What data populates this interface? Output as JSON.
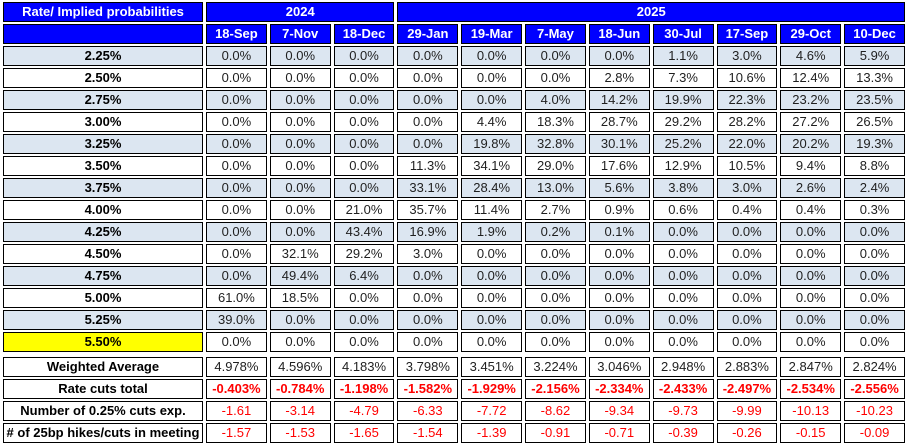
{
  "chart_data": {
    "type": "table",
    "title": "Rate/ Implied probabilities",
    "corner_header": "Rate/ Implied probabilities",
    "year_groups": [
      {
        "label": "2024",
        "span": 3
      },
      {
        "label": "2025",
        "span": 8
      }
    ],
    "columns": [
      "18-Sep",
      "7-Nov",
      "18-Dec",
      "29-Jan",
      "19-Mar",
      "7-May",
      "18-Jun",
      "30-Jul",
      "17-Sep",
      "29-Oct",
      "10-Dec"
    ],
    "highlight_row": "5.50%",
    "rows": [
      {
        "label": "2.25%",
        "values": [
          "0.0%",
          "0.0%",
          "0.0%",
          "0.0%",
          "0.0%",
          "0.0%",
          "0.0%",
          "1.1%",
          "3.0%",
          "4.6%",
          "5.9%"
        ]
      },
      {
        "label": "2.50%",
        "values": [
          "0.0%",
          "0.0%",
          "0.0%",
          "0.0%",
          "0.0%",
          "0.0%",
          "2.8%",
          "7.3%",
          "10.6%",
          "12.4%",
          "13.3%"
        ]
      },
      {
        "label": "2.75%",
        "values": [
          "0.0%",
          "0.0%",
          "0.0%",
          "0.0%",
          "0.0%",
          "4.0%",
          "14.2%",
          "19.9%",
          "22.3%",
          "23.2%",
          "23.5%"
        ]
      },
      {
        "label": "3.00%",
        "values": [
          "0.0%",
          "0.0%",
          "0.0%",
          "0.0%",
          "4.4%",
          "18.3%",
          "28.7%",
          "29.2%",
          "28.2%",
          "27.2%",
          "26.5%"
        ]
      },
      {
        "label": "3.25%",
        "values": [
          "0.0%",
          "0.0%",
          "0.0%",
          "0.0%",
          "19.8%",
          "32.8%",
          "30.1%",
          "25.2%",
          "22.0%",
          "20.2%",
          "19.3%"
        ]
      },
      {
        "label": "3.50%",
        "values": [
          "0.0%",
          "0.0%",
          "0.0%",
          "11.3%",
          "34.1%",
          "29.0%",
          "17.6%",
          "12.9%",
          "10.5%",
          "9.4%",
          "8.8%"
        ]
      },
      {
        "label": "3.75%",
        "values": [
          "0.0%",
          "0.0%",
          "0.0%",
          "33.1%",
          "28.4%",
          "13.0%",
          "5.6%",
          "3.8%",
          "3.0%",
          "2.6%",
          "2.4%"
        ]
      },
      {
        "label": "4.00%",
        "values": [
          "0.0%",
          "0.0%",
          "21.0%",
          "35.7%",
          "11.4%",
          "2.7%",
          "0.9%",
          "0.6%",
          "0.4%",
          "0.4%",
          "0.3%"
        ]
      },
      {
        "label": "4.25%",
        "values": [
          "0.0%",
          "0.0%",
          "43.4%",
          "16.9%",
          "1.9%",
          "0.2%",
          "0.1%",
          "0.0%",
          "0.0%",
          "0.0%",
          "0.0%"
        ]
      },
      {
        "label": "4.50%",
        "values": [
          "0.0%",
          "32.1%",
          "29.2%",
          "3.0%",
          "0.0%",
          "0.0%",
          "0.0%",
          "0.0%",
          "0.0%",
          "0.0%",
          "0.0%"
        ]
      },
      {
        "label": "4.75%",
        "values": [
          "0.0%",
          "49.4%",
          "6.4%",
          "0.0%",
          "0.0%",
          "0.0%",
          "0.0%",
          "0.0%",
          "0.0%",
          "0.0%",
          "0.0%"
        ]
      },
      {
        "label": "5.00%",
        "values": [
          "61.0%",
          "18.5%",
          "0.0%",
          "0.0%",
          "0.0%",
          "0.0%",
          "0.0%",
          "0.0%",
          "0.0%",
          "0.0%",
          "0.0%"
        ]
      },
      {
        "label": "5.25%",
        "values": [
          "39.0%",
          "0.0%",
          "0.0%",
          "0.0%",
          "0.0%",
          "0.0%",
          "0.0%",
          "0.0%",
          "0.0%",
          "0.0%",
          "0.0%"
        ]
      },
      {
        "label": "5.50%",
        "values": [
          "0.0%",
          "0.0%",
          "0.0%",
          "0.0%",
          "0.0%",
          "0.0%",
          "0.0%",
          "0.0%",
          "0.0%",
          "0.0%",
          "0.0%"
        ]
      }
    ],
    "summary": [
      {
        "label": "Weighted Average",
        "style": "dark",
        "values": [
          "4.978%",
          "4.596%",
          "4.183%",
          "3.798%",
          "3.451%",
          "3.224%",
          "3.046%",
          "2.948%",
          "2.883%",
          "2.847%",
          "2.824%"
        ]
      },
      {
        "label": "Rate cuts total",
        "style": "bold-red",
        "values": [
          "-0.403%",
          "-0.784%",
          "-1.198%",
          "-1.582%",
          "-1.929%",
          "-2.156%",
          "-2.334%",
          "-2.433%",
          "-2.497%",
          "-2.534%",
          "-2.556%"
        ]
      },
      {
        "label": "Number of 0.25% cuts exp.",
        "style": "red",
        "values": [
          "-1.61",
          "-3.14",
          "-4.79",
          "-6.33",
          "-7.72",
          "-8.62",
          "-9.34",
          "-9.73",
          "-9.99",
          "-10.13",
          "-10.23"
        ]
      },
      {
        "label": "# of 25bp hikes/cuts in meeting",
        "style": "red",
        "values": [
          "-1.57",
          "-1.53",
          "-1.65",
          "-1.54",
          "-1.39",
          "-0.91",
          "-0.71",
          "-0.39",
          "-0.26",
          "-0.15",
          "-0.09"
        ]
      }
    ],
    "colors": {
      "header_bg": "#0000FF",
      "header_text": "#FFFFFF",
      "stripe_bg": "#DCE6F1",
      "highlight_bg": "#FFFF00",
      "negative_text": "#FF0000",
      "border": "#000000"
    }
  }
}
